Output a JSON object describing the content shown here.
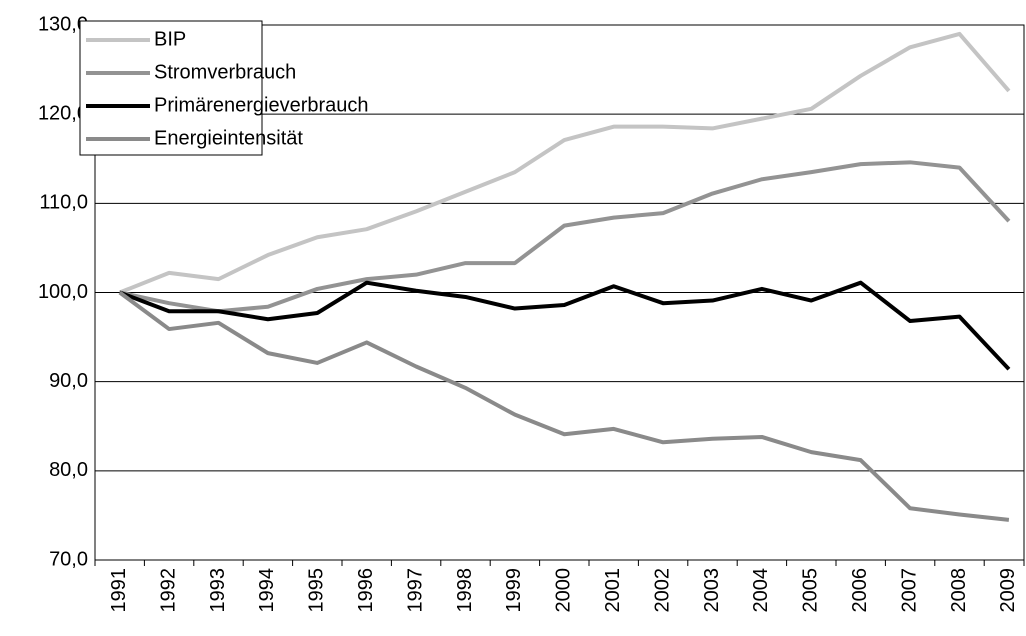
{
  "chart_data": {
    "type": "line",
    "categories": [
      "1991",
      "1992",
      "1993",
      "1994",
      "1995",
      "1996",
      "1997",
      "1998",
      "1999",
      "2000",
      "2001",
      "2002",
      "2003",
      "2004",
      "2005",
      "2006",
      "2007",
      "2008",
      "2009"
    ],
    "series": [
      {
        "name": "BIP",
        "color": "#c4c4c4",
        "values": [
          100,
          102.2,
          101.5,
          104.2,
          106.2,
          107.1,
          109.1,
          111.3,
          113.5,
          117.1,
          118.6,
          118.6,
          118.4,
          119.5,
          120.6,
          124.3,
          127.5,
          129.0,
          122.6
        ]
      },
      {
        "name": "Stromverbrauch",
        "color": "#939393",
        "values": [
          100,
          98.8,
          97.9,
          98.4,
          100.4,
          101.5,
          102.0,
          103.3,
          103.3,
          107.5,
          108.4,
          108.9,
          111.1,
          112.7,
          113.5,
          114.4,
          114.6,
          114.0,
          108.0
        ]
      },
      {
        "name": "Primärenergieverbrauch",
        "color": "#000000",
        "values": [
          100,
          97.9,
          97.9,
          97.0,
          97.7,
          101.1,
          100.2,
          99.5,
          98.2,
          98.6,
          100.7,
          98.8,
          99.1,
          100.4,
          99.1,
          101.1,
          96.8,
          97.3,
          91.4
        ]
      },
      {
        "name": "Energieintensität",
        "color": "#8a8a8a",
        "values": [
          100,
          95.9,
          96.6,
          93.2,
          92.1,
          94.4,
          91.7,
          89.3,
          86.3,
          84.1,
          84.7,
          83.2,
          83.6,
          83.8,
          82.1,
          81.2,
          75.8,
          75.1,
          74.5
        ]
      }
    ],
    "ylim": [
      70,
      130
    ],
    "yticks": [
      {
        "value": 70,
        "label": "70,0"
      },
      {
        "value": 80,
        "label": "80,0"
      },
      {
        "value": 90,
        "label": "90,0"
      },
      {
        "value": 100,
        "label": "100,0"
      },
      {
        "value": 110,
        "label": "110,0"
      },
      {
        "value": 120,
        "label": "120,0"
      },
      {
        "value": 130,
        "label": "130,0"
      }
    ],
    "grid": true,
    "legend": "upper left"
  }
}
